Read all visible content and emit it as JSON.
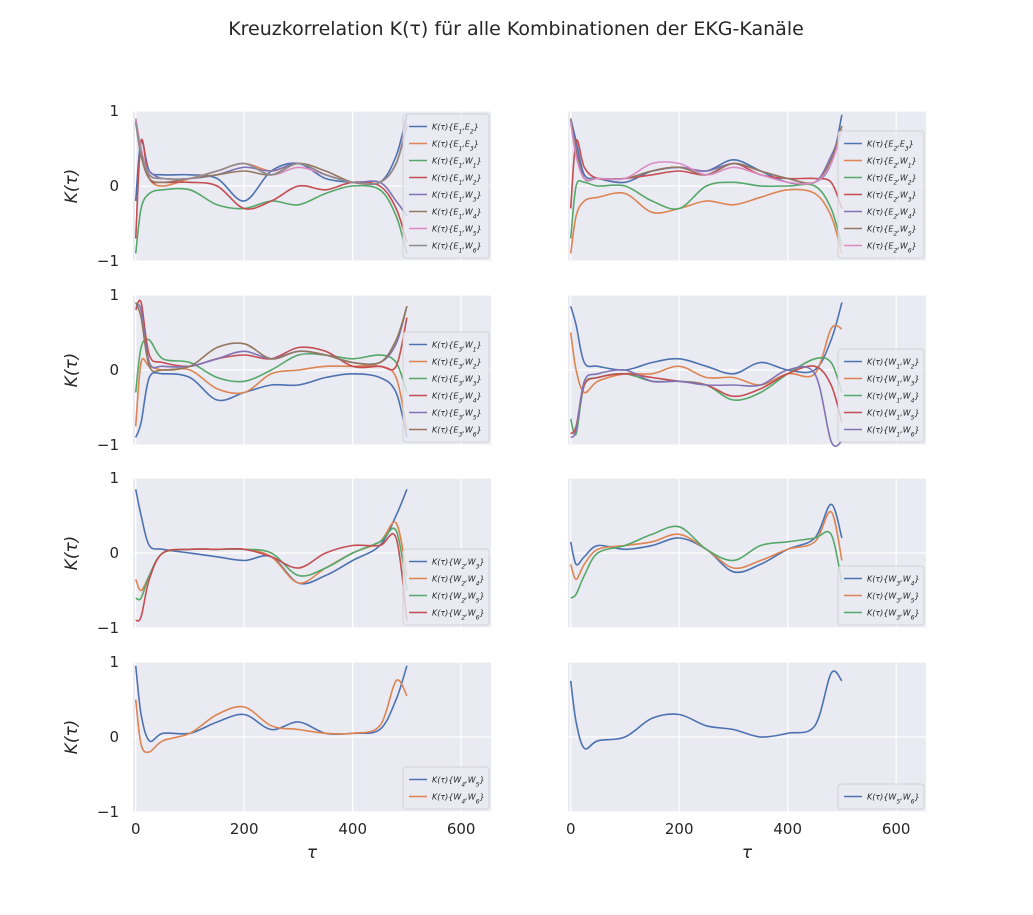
{
  "figure": {
    "title": "Kreuzkorrelation K(τ) für alle Kombinationen der EKG-Kanäle",
    "colors": {
      "background_axes": "#EAEAF2",
      "grid": "#FFFFFF",
      "palette": [
        "#4C72B0",
        "#DD8452",
        "#55A868",
        "#C44E52",
        "#8172B3",
        "#937860",
        "#DA8BC3",
        "#8C8C8C"
      ]
    }
  },
  "chart_data": [
    {
      "type": "line",
      "ylabel": "K(τ)",
      "xlabel": "",
      "xlim": [
        -5,
        655
      ],
      "ylim": [
        -1,
        1
      ],
      "xticks": [
        0,
        200,
        400,
        600
      ],
      "yticks": [
        -1,
        0,
        1
      ],
      "grid": true,
      "legend": "right",
      "x": [
        0,
        10,
        25,
        50,
        100,
        150,
        200,
        250,
        300,
        350,
        400,
        450,
        480,
        500
      ],
      "series": [
        {
          "name": "K(τ){E1,E2}",
          "values": [
            -0.2,
            0.6,
            0.2,
            0.15,
            0.15,
            0.1,
            -0.2,
            0.2,
            0.3,
            0.1,
            0.05,
            0.05,
            0.4,
            0.95
          ]
        },
        {
          "name": "K(τ){E1,E3}",
          "values": [
            0.9,
            0.5,
            0.1,
            0.0,
            0.1,
            0.2,
            0.3,
            0.2,
            0.3,
            0.15,
            0.05,
            0.05,
            0.3,
            0.85
          ]
        },
        {
          "name": "K(τ){E1,W1}",
          "values": [
            -0.9,
            -0.3,
            -0.1,
            -0.05,
            -0.05,
            -0.25,
            -0.3,
            -0.2,
            -0.25,
            -0.1,
            0.0,
            -0.05,
            -0.4,
            -0.9
          ]
        },
        {
          "name": "K(τ){E1,W2}",
          "values": [
            -0.7,
            0.6,
            0.1,
            0.05,
            0.05,
            0.0,
            -0.3,
            -0.2,
            0.0,
            -0.05,
            0.05,
            0.0,
            -0.3,
            -0.75
          ]
        },
        {
          "name": "K(τ){E1,W3}",
          "values": [
            0.9,
            0.4,
            0.2,
            0.1,
            0.1,
            0.15,
            0.25,
            0.2,
            0.3,
            0.15,
            0.05,
            0.05,
            -0.2,
            -0.4
          ]
        },
        {
          "name": "K(τ){E1,W4}",
          "values": [
            0.85,
            0.4,
            0.1,
            0.05,
            0.1,
            0.15,
            0.2,
            0.15,
            0.3,
            0.2,
            0.05,
            0.05,
            0.3,
            0.8
          ]
        },
        {
          "name": "K(τ){E1,W5}",
          "values": [
            0.9,
            0.5,
            0.15,
            0.1,
            0.1,
            0.2,
            0.3,
            0.15,
            0.25,
            0.15,
            0.05,
            0.05,
            0.3,
            0.85
          ]
        },
        {
          "name": "K(τ){E1,W6}",
          "values": [
            0.85,
            0.45,
            0.15,
            0.1,
            0.1,
            0.2,
            0.3,
            0.15,
            0.3,
            0.15,
            0.05,
            0.05,
            0.3,
            0.8
          ]
        }
      ]
    },
    {
      "type": "line",
      "ylabel": "",
      "xlabel": "",
      "xlim": [
        -5,
        655
      ],
      "ylim": [
        -1,
        1
      ],
      "xticks": [
        0,
        200,
        400,
        600
      ],
      "yticks": [
        -1,
        0,
        1
      ],
      "grid": true,
      "legend": "right",
      "x": [
        0,
        10,
        25,
        50,
        100,
        150,
        200,
        250,
        300,
        350,
        400,
        450,
        480,
        500
      ],
      "series": [
        {
          "name": "K(τ){E2,E3}",
          "values": [
            0.9,
            0.6,
            0.15,
            0.1,
            0.05,
            0.2,
            0.25,
            0.2,
            0.35,
            0.2,
            0.05,
            0.05,
            0.3,
            0.95
          ]
        },
        {
          "name": "K(τ){E2,W1}",
          "values": [
            -0.9,
            -0.4,
            -0.2,
            -0.15,
            -0.1,
            -0.35,
            -0.3,
            -0.2,
            -0.25,
            -0.15,
            -0.05,
            -0.1,
            -0.4,
            -0.9
          ]
        },
        {
          "name": "K(τ){E2,W2}",
          "values": [
            -0.7,
            0.0,
            0.05,
            0.0,
            0.0,
            -0.2,
            -0.3,
            0.0,
            0.05,
            0.0,
            0.0,
            0.0,
            -0.3,
            -0.8
          ]
        },
        {
          "name": "K(τ){E2,W3}",
          "values": [
            -0.3,
            0.6,
            0.25,
            0.1,
            0.1,
            0.15,
            0.2,
            0.15,
            0.3,
            0.15,
            0.1,
            0.1,
            0.05,
            -0.3
          ]
        },
        {
          "name": "K(τ){E2,W4}",
          "values": [
            0.85,
            0.5,
            0.1,
            0.1,
            0.1,
            0.2,
            0.25,
            0.2,
            0.3,
            0.2,
            0.1,
            0.05,
            0.4,
            0.75
          ]
        },
        {
          "name": "K(τ){E2,W5}",
          "values": [
            0.9,
            0.45,
            0.1,
            0.1,
            0.1,
            0.2,
            0.25,
            0.15,
            0.3,
            0.2,
            0.1,
            0.05,
            0.35,
            0.8
          ]
        },
        {
          "name": "K(τ){E2,W6}",
          "values": [
            0.85,
            0.4,
            0.1,
            0.1,
            0.1,
            0.3,
            0.3,
            0.15,
            0.25,
            0.15,
            0.05,
            0.05,
            0.3,
            0.75
          ]
        }
      ]
    },
    {
      "type": "line",
      "ylabel": "K(τ)",
      "xlabel": "",
      "xlim": [
        -5,
        655
      ],
      "ylim": [
        -1,
        1
      ],
      "xticks": [
        0,
        200,
        400,
        600
      ],
      "yticks": [
        -1,
        0,
        1
      ],
      "grid": true,
      "legend": "right",
      "x": [
        0,
        10,
        25,
        50,
        100,
        150,
        200,
        250,
        300,
        350,
        400,
        450,
        480,
        500
      ],
      "series": [
        {
          "name": "K(τ){E3,W1}",
          "values": [
            -0.9,
            -0.7,
            -0.1,
            -0.05,
            -0.1,
            -0.4,
            -0.3,
            -0.2,
            -0.2,
            -0.1,
            -0.05,
            -0.1,
            -0.3,
            -0.9
          ]
        },
        {
          "name": "K(τ){E3,W2}",
          "values": [
            -0.75,
            0.1,
            0.05,
            0.0,
            0.0,
            -0.25,
            -0.3,
            -0.05,
            0.0,
            0.05,
            0.05,
            0.05,
            -0.1,
            -0.8
          ]
        },
        {
          "name": "K(τ){E3,W3}",
          "values": [
            -0.3,
            0.3,
            0.4,
            0.15,
            0.1,
            -0.1,
            -0.15,
            0.0,
            0.2,
            0.2,
            0.15,
            0.2,
            0.1,
            -0.3
          ]
        },
        {
          "name": "K(τ){E3,W4}",
          "values": [
            0.8,
            0.9,
            0.2,
            0.1,
            0.05,
            0.15,
            0.2,
            0.15,
            0.3,
            0.25,
            0.05,
            0.05,
            0.05,
            0.7
          ]
        },
        {
          "name": "K(τ){E3,W5}",
          "values": [
            0.85,
            0.8,
            0.1,
            0.05,
            0.05,
            0.15,
            0.25,
            0.15,
            0.25,
            0.2,
            0.1,
            0.1,
            0.35,
            0.85
          ]
        },
        {
          "name": "K(τ){E3,W6}",
          "values": [
            0.9,
            0.7,
            0.05,
            0.0,
            0.05,
            0.3,
            0.35,
            0.15,
            0.25,
            0.2,
            0.1,
            0.1,
            0.4,
            0.85
          ]
        }
      ]
    },
    {
      "type": "line",
      "ylabel": "",
      "xlabel": "",
      "xlim": [
        -5,
        655
      ],
      "ylim": [
        -1,
        1
      ],
      "xticks": [
        0,
        200,
        400,
        600
      ],
      "yticks": [
        -1,
        0,
        1
      ],
      "grid": true,
      "legend": "right",
      "x": [
        0,
        10,
        25,
        50,
        100,
        150,
        200,
        250,
        300,
        350,
        400,
        450,
        480,
        500
      ],
      "series": [
        {
          "name": "K(τ){W1,W2}",
          "values": [
            0.85,
            0.6,
            0.1,
            0.05,
            0.0,
            0.1,
            0.15,
            0.05,
            -0.05,
            0.1,
            0.0,
            0.0,
            0.4,
            0.9
          ]
        },
        {
          "name": "K(τ){W1,W3}",
          "values": [
            0.5,
            0.0,
            -0.3,
            -0.15,
            -0.05,
            -0.05,
            0.05,
            -0.1,
            -0.1,
            -0.2,
            -0.05,
            -0.05,
            0.55,
            0.55
          ]
        },
        {
          "name": "K(τ){W1,W4}",
          "values": [
            -0.65,
            -0.85,
            -0.2,
            -0.1,
            -0.05,
            -0.15,
            -0.15,
            -0.2,
            -0.4,
            -0.3,
            -0.05,
            0.15,
            0.1,
            -0.3
          ]
        },
        {
          "name": "K(τ){W1,W5}",
          "values": [
            -0.85,
            -0.75,
            -0.2,
            -0.1,
            -0.05,
            -0.1,
            -0.15,
            -0.2,
            -0.35,
            -0.25,
            -0.05,
            0.05,
            -0.2,
            -0.7
          ]
        },
        {
          "name": "K(τ){W1,W6}",
          "values": [
            -0.9,
            -0.8,
            -0.15,
            -0.05,
            0.0,
            -0.15,
            -0.15,
            -0.2,
            -0.2,
            -0.2,
            0.0,
            -0.05,
            -0.95,
            -0.95
          ]
        }
      ]
    },
    {
      "type": "line",
      "ylabel": "K(τ)",
      "xlabel": "",
      "xlim": [
        -5,
        655
      ],
      "ylim": [
        -1,
        1
      ],
      "xticks": [
        0,
        200,
        400,
        600
      ],
      "yticks": [
        -1,
        0,
        1
      ],
      "grid": true,
      "legend": "lower right",
      "x": [
        0,
        10,
        25,
        50,
        100,
        150,
        200,
        250,
        300,
        350,
        400,
        450,
        480,
        500
      ],
      "series": [
        {
          "name": "K(τ){W2,W3}",
          "values": [
            0.85,
            0.5,
            0.1,
            0.05,
            0.0,
            -0.05,
            -0.1,
            -0.05,
            -0.4,
            -0.3,
            -0.1,
            0.1,
            0.5,
            0.85
          ]
        },
        {
          "name": "K(τ){W2,W4}",
          "values": [
            -0.35,
            -0.5,
            -0.3,
            0.0,
            0.05,
            0.05,
            0.05,
            -0.05,
            -0.4,
            -0.2,
            0.0,
            0.15,
            0.4,
            -0.3
          ]
        },
        {
          "name": "K(τ){W2,W5}",
          "values": [
            -0.6,
            -0.6,
            -0.3,
            0.0,
            0.05,
            0.05,
            0.05,
            0.0,
            -0.3,
            -0.2,
            0.0,
            0.15,
            0.3,
            -0.5
          ]
        },
        {
          "name": "K(τ){W2,W6}",
          "values": [
            -0.9,
            -0.85,
            -0.35,
            0.0,
            0.05,
            0.05,
            0.05,
            -0.05,
            -0.2,
            0.0,
            0.1,
            0.1,
            0.2,
            -0.9
          ]
        }
      ]
    },
    {
      "type": "line",
      "ylabel": "",
      "xlabel": "",
      "xlim": [
        -5,
        655
      ],
      "ylim": [
        -1,
        1
      ],
      "xticks": [
        0,
        200,
        400,
        600
      ],
      "yticks": [
        -1,
        0,
        1
      ],
      "grid": true,
      "legend": "lower right",
      "x": [
        0,
        10,
        25,
        50,
        100,
        150,
        200,
        250,
        300,
        350,
        400,
        450,
        480,
        500
      ],
      "series": [
        {
          "name": "K(τ){W3,W4}",
          "values": [
            0.15,
            -0.15,
            -0.05,
            0.1,
            0.05,
            0.1,
            0.2,
            0.05,
            -0.25,
            -0.15,
            0.05,
            0.2,
            0.65,
            0.2
          ]
        },
        {
          "name": "K(τ){W3,W5}",
          "values": [
            -0.15,
            -0.35,
            -0.15,
            0.05,
            0.1,
            0.15,
            0.25,
            0.05,
            -0.2,
            -0.1,
            0.05,
            0.15,
            0.55,
            -0.1
          ]
        },
        {
          "name": "K(τ){W3,W6}",
          "values": [
            -0.6,
            -0.55,
            -0.3,
            0.0,
            0.1,
            0.25,
            0.35,
            0.05,
            -0.1,
            0.1,
            0.15,
            0.2,
            0.25,
            -0.4
          ]
        }
      ]
    },
    {
      "type": "line",
      "ylabel": "K(τ)",
      "xlabel": "τ",
      "xlim": [
        -5,
        655
      ],
      "ylim": [
        -1,
        1
      ],
      "xticks": [
        0,
        200,
        400,
        600
      ],
      "yticks": [
        -1,
        0,
        1
      ],
      "grid": true,
      "legend": "lower right",
      "x": [
        0,
        10,
        25,
        50,
        100,
        150,
        200,
        250,
        300,
        350,
        400,
        450,
        480,
        500
      ],
      "series": [
        {
          "name": "K(τ){W4,W5}",
          "values": [
            0.95,
            0.3,
            -0.05,
            0.05,
            0.05,
            0.2,
            0.3,
            0.1,
            0.2,
            0.05,
            0.05,
            0.1,
            0.5,
            0.95
          ]
        },
        {
          "name": "K(τ){W4,W6}",
          "values": [
            0.5,
            -0.1,
            -0.2,
            -0.05,
            0.05,
            0.3,
            0.4,
            0.15,
            0.1,
            0.05,
            0.05,
            0.15,
            0.75,
            0.55
          ]
        }
      ]
    },
    {
      "type": "line",
      "ylabel": "",
      "xlabel": "τ",
      "xlim": [
        -5,
        655
      ],
      "ylim": [
        -1,
        1
      ],
      "xticks": [
        0,
        200,
        400,
        600
      ],
      "yticks": [
        -1,
        0,
        1
      ],
      "grid": true,
      "legend": "lower right",
      "x": [
        0,
        10,
        25,
        50,
        100,
        150,
        200,
        250,
        300,
        350,
        400,
        450,
        480,
        500
      ],
      "series": [
        {
          "name": "K(τ){W5,W6}",
          "values": [
            0.75,
            0.2,
            -0.15,
            -0.05,
            0.0,
            0.25,
            0.3,
            0.15,
            0.1,
            0.0,
            0.05,
            0.15,
            0.85,
            0.75
          ]
        }
      ]
    }
  ]
}
